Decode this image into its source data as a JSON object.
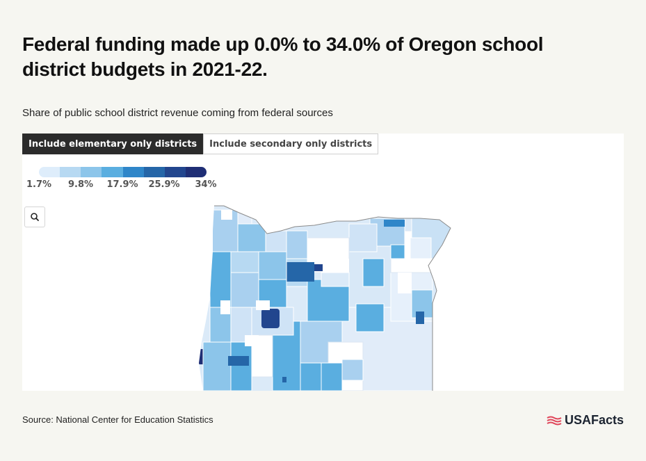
{
  "header": {
    "title": "Federal funding made up 0.0% to 34.0% of Oregon school district budgets in 2021-22.",
    "subtitle": "Share of public school district revenue coming from federal sources"
  },
  "tabs": [
    {
      "label": "Include elementary only districts",
      "active": true
    },
    {
      "label": "Include secondary only districts",
      "active": false
    }
  ],
  "legend": {
    "colors": [
      "#deedfb",
      "#b7d9f2",
      "#8cc5ea",
      "#5aaee0",
      "#2f86c9",
      "#2566a8",
      "#22468e",
      "#1f2e75"
    ],
    "labels": [
      "1.7%",
      "9.8%",
      "17.9%",
      "25.9%",
      "34%"
    ]
  },
  "map": {
    "state": "Oregon",
    "zoom_icon": "search-icon"
  },
  "footer": {
    "source": "Source: National Center for Education Statistics",
    "brand": "USAFacts",
    "brand_icon": "flag-icon"
  }
}
